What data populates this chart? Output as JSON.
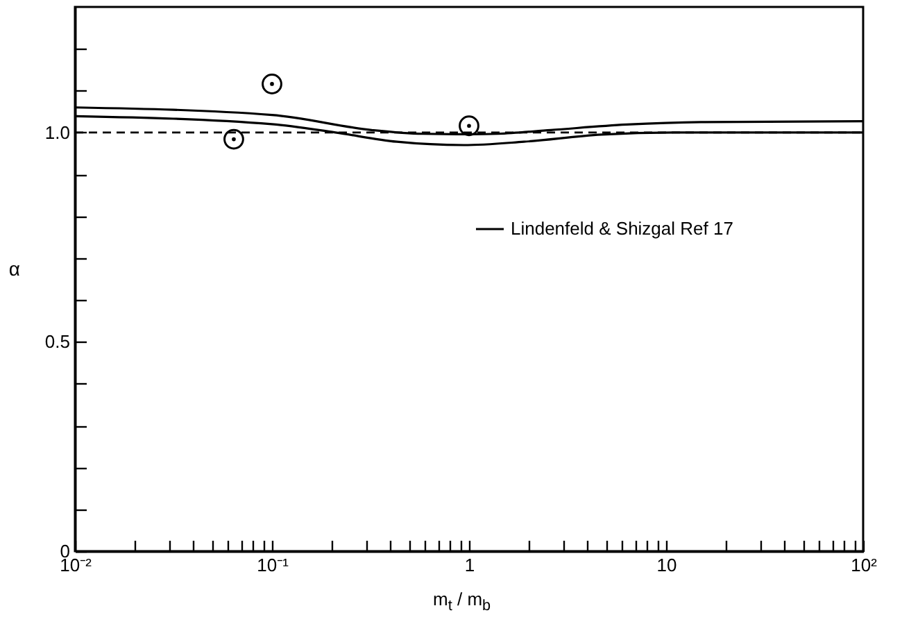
{
  "chart_data": {
    "type": "line",
    "xlabel": "m$_{t}$ / m$_{b}$",
    "ylabel": "α",
    "legend": "right",
    "line_style": "solid",
    "grid": false,
    "xlim": [
      0.01,
      100
    ],
    "ylim": [
      0,
      1.3
    ],
    "log": "x",
    "xticks": [
      {
        "value": 0.01,
        "label": "10⁻²"
      },
      {
        "value": 0.02,
        "label": null
      },
      {
        "value": 0.03,
        "label": null
      },
      {
        "value": 0.04,
        "label": null
      },
      {
        "value": 0.05,
        "label": null
      },
      {
        "value": 0.06,
        "label": null
      },
      {
        "value": 0.07,
        "label": null
      },
      {
        "value": 0.08,
        "label": null
      },
      {
        "value": 0.09,
        "label": null
      },
      {
        "value": 0.1,
        "label": "10⁻¹"
      },
      {
        "value": 0.2,
        "label": null
      },
      {
        "value": 0.3,
        "label": null
      },
      {
        "value": 0.4,
        "label": null
      },
      {
        "value": 0.5,
        "label": null
      },
      {
        "value": 0.6,
        "label": null
      },
      {
        "value": 0.7,
        "label": null
      },
      {
        "value": 0.8,
        "label": null
      },
      {
        "value": 0.9,
        "label": null
      },
      1,
      {
        "value": 2,
        "label": null
      },
      {
        "value": 3,
        "label": null
      },
      {
        "value": 4,
        "label": null
      },
      {
        "value": 5,
        "label": null
      },
      {
        "value": 6,
        "label": null
      },
      {
        "value": 7,
        "label": null
      },
      {
        "value": 8,
        "label": null
      },
      {
        "value": 9,
        "label": null
      },
      10,
      {
        "value": 20,
        "label": null
      },
      {
        "value": 30,
        "label": null
      },
      {
        "value": 40,
        "label": null
      },
      {
        "value": 50,
        "label": null
      },
      {
        "value": 60,
        "label": null
      },
      {
        "value": 70,
        "label": null
      },
      {
        "value": 80,
        "label": null
      },
      {
        "value": 90,
        "label": null
      },
      {
        "value": 100,
        "label": "10²"
      }
    ],
    "yticks": [
      0,
      {
        "value": 0.1,
        "label": null
      },
      {
        "value": 0.2,
        "label": null
      },
      {
        "value": 0.3,
        "label": null
      },
      {
        "value": 0.4,
        "label": null
      },
      0.5,
      {
        "value": 0.6,
        "label": null
      },
      {
        "value": 0.7,
        "label": null
      },
      {
        "value": 0.8,
        "label": null
      },
      {
        "value": 0.9,
        "label": null
      },
      {
        "value": 1.0,
        "label": "1.0"
      },
      {
        "value": 1.1,
        "label": null
      },
      {
        "value": 1.2,
        "label": null
      }
    ],
    "series": [
      {
        "name": "Lindenfeld & Shizgal Ref 17",
        "color": "#000000",
        "x": [
          0.01,
          0.1,
          0.32,
          0.58,
          1.0,
          1.4,
          2.6,
          6.3,
          15,
          100
        ],
        "values": [
          1.06,
          1.042,
          1.006,
          0.997,
          0.996,
          0.997,
          1.006,
          1.019,
          1.025,
          1.027
        ]
      },
      {
        "color": "#000000",
        "x": [
          0.01,
          0.1,
          0.21,
          0.43,
          0.94,
          1.9,
          4.7,
          11,
          100
        ],
        "values": [
          1.039,
          1.02,
          1.0,
          0.978,
          0.97,
          0.978,
          0.995,
          1.0,
          1.0
        ]
      },
      {
        "type": "scatter",
        "marker": "circle",
        "color": "#000000",
        "x": [
          0.064,
          0.1,
          1.0
        ],
        "values": [
          0.984,
          1.116,
          1.016
        ]
      }
    ],
    "ref_lines": [
      {
        "axis": "y",
        "value": 1.0,
        "line_style": "dashed",
        "color": "#000000"
      }
    ]
  }
}
